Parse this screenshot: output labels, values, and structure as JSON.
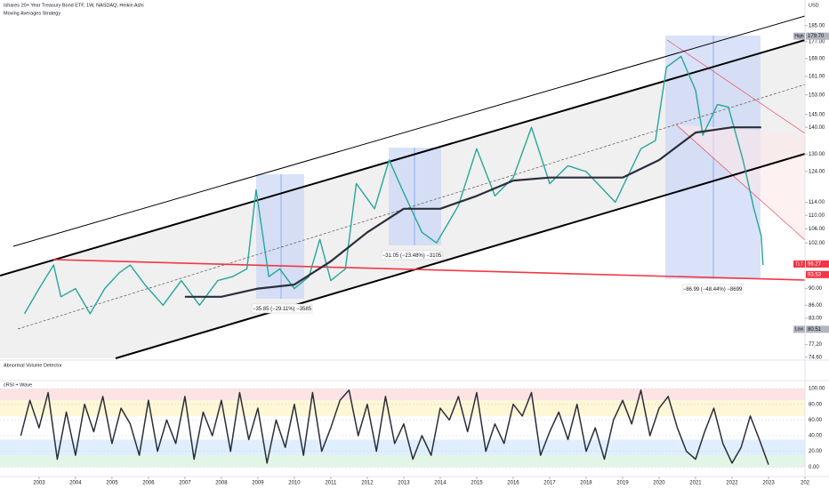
{
  "chart_data": {
    "type": "line",
    "title": "Ishares 20+ Year Treasury Bond ETF, 1W, NASDAQ, Heikin Ashi",
    "subtitle": "Moving Averages Strategy",
    "currency": "USD",
    "log_scale": true,
    "xlim": [
      2001.93,
      2024
    ],
    "xticks": [
      2003,
      2004,
      2005,
      2006,
      2007,
      2008,
      2009,
      2010,
      2011,
      2012,
      2013,
      2014,
      2015,
      2016,
      2017,
      2018,
      2019,
      2020,
      2021,
      2022,
      2023,
      {
        "value": 2024,
        "label": "202"
      }
    ],
    "ylim": [
      74,
      196
    ],
    "yticks": [
      {
        "value": 185,
        "label": "185.00"
      },
      {
        "value": 177,
        "label": "177.00"
      },
      {
        "value": 169,
        "label": "169.00"
      },
      {
        "value": 161,
        "label": "161.00"
      },
      {
        "value": 153,
        "label": "153.00"
      },
      {
        "value": 145,
        "label": "145.00"
      },
      {
        "value": 140,
        "label": "140.00"
      },
      {
        "value": 130,
        "label": "130.00"
      },
      {
        "value": 124,
        "label": "124.00"
      },
      {
        "value": 114,
        "label": "114.00"
      },
      {
        "value": 110,
        "label": "110.00"
      },
      {
        "value": 106,
        "label": "106.00"
      },
      {
        "value": 102,
        "label": "102.00"
      },
      {
        "value": 90,
        "label": "90.00"
      },
      {
        "value": 86,
        "label": "86.00"
      },
      {
        "value": 83,
        "label": "83.00"
      },
      {
        "value": 77.2,
        "label": "77.20"
      },
      {
        "value": 74.6,
        "label": "74.60"
      }
    ],
    "series": [
      {
        "name": "TLT",
        "color": "#26a69a",
        "x": [
          2002.6,
          2003.0,
          2003.4,
          2003.6,
          2004.0,
          2004.4,
          2004.8,
          2005.2,
          2005.5,
          2005.9,
          2006.4,
          2006.9,
          2007.4,
          2007.9,
          2008.3,
          2008.7,
          2008.95,
          2009.3,
          2009.6,
          2010.0,
          2010.4,
          2010.7,
          2011.0,
          2011.4,
          2011.7,
          2012.2,
          2012.6,
          2013.0,
          2013.5,
          2013.9,
          2014.5,
          2015.0,
          2015.5,
          2016.0,
          2016.5,
          2017.0,
          2017.5,
          2018.0,
          2018.8,
          2019.5,
          2019.9,
          2020.2,
          2020.6,
          2021.0,
          2021.2,
          2021.6,
          2021.9,
          2022.3,
          2022.6,
          2022.8,
          2022.85
        ],
        "values": [
          84,
          90,
          96,
          88,
          90,
          84,
          90,
          94,
          96,
          91,
          86,
          92,
          86,
          92,
          93,
          95,
          118,
          93,
          95,
          90,
          93,
          103,
          92,
          95,
          120,
          112,
          128,
          117,
          105,
          102,
          113,
          132,
          116,
          122,
          140,
          120,
          126,
          124,
          114,
          132,
          135,
          165,
          170,
          155,
          137,
          149,
          148,
          128,
          112,
          104,
          96
        ]
      },
      {
        "color": "#2a2e39",
        "x": [
          2007.0,
          2008.0,
          2009.0,
          2010.0,
          2011.0,
          2012.0,
          2013.0,
          2014.0,
          2015.0,
          2016.0,
          2017.0,
          2018.0,
          2019.0,
          2020.0,
          2021.0,
          2022.0,
          2022.8
        ],
        "values": [
          88,
          88,
          90,
          91,
          97,
          105,
          112,
          112,
          116,
          121,
          122,
          122,
          122,
          128,
          138,
          140,
          140
        ]
      }
    ],
    "price_labels": [
      {
        "name": "High",
        "value": 179.7,
        "value_label": "179.70",
        "color": "#b2b5be"
      },
      {
        "name": "TLT",
        "value": 96.27,
        "value_label": "96.27",
        "color": "#f23645"
      },
      {
        "value": 93.53,
        "value_label": "93.53",
        "color": "#f23645"
      },
      {
        "name": "Low",
        "value": 80.51,
        "value_label": "80.51",
        "color": "#b2b5be"
      }
    ],
    "annotations": [
      "−35.85 (−29.11%) −3585",
      "−31.05 (−23.48%) −3105",
      "−86.99 (−48.44%) −8699"
    ],
    "indicators": [
      {
        "title": "Abnormal Volume Detector"
      },
      {
        "title": "cRSI + Wave",
        "ylim": [
          -11,
          108
        ],
        "yticks": [
          {
            "value": 100,
            "label": "100.00"
          },
          {
            "value": 80,
            "label": "80.00"
          },
          {
            "value": 60,
            "label": "60.00"
          },
          {
            "value": 40,
            "label": "40.00"
          },
          {
            "value": 20,
            "label": "20.00"
          },
          {
            "value": 0,
            "label": "0.00"
          }
        ],
        "series": [
          {
            "color": "#2a2e39",
            "x": [
              2002.5,
              2002.75,
              2003.0,
              2003.25,
              2003.5,
              2003.75,
              2004.0,
              2004.25,
              2004.5,
              2004.75,
              2005.0,
              2005.25,
              2005.5,
              2005.75,
              2006.0,
              2006.25,
              2006.5,
              2006.75,
              2007.0,
              2007.25,
              2007.5,
              2007.75,
              2008.0,
              2008.25,
              2008.5,
              2008.75,
              2009.0,
              2009.25,
              2009.5,
              2009.75,
              2010.0,
              2010.25,
              2010.5,
              2010.75,
              2011.0,
              2011.25,
              2011.5,
              2011.75,
              2012.0,
              2012.25,
              2012.5,
              2012.75,
              2013.0,
              2013.25,
              2013.5,
              2013.75,
              2014.0,
              2014.25,
              2014.5,
              2014.75,
              2015.0,
              2015.25,
              2015.5,
              2015.75,
              2016.0,
              2016.25,
              2016.5,
              2016.75,
              2017.0,
              2017.25,
              2017.5,
              2017.75,
              2018.0,
              2018.25,
              2018.5,
              2018.75,
              2019.0,
              2019.25,
              2019.5,
              2019.75,
              2020.0,
              2020.25,
              2020.5,
              2020.75,
              2021.0,
              2021.25,
              2021.5,
              2021.75,
              2022.0,
              2022.25,
              2022.5,
              2022.75,
              2023.0
            ],
            "values": [
              40,
              85,
              50,
              95,
              10,
              70,
              15,
              80,
              45,
              90,
              30,
              75,
              55,
              15,
              85,
              20,
              60,
              30,
              90,
              10,
              70,
              40,
              85,
              20,
              95,
              35,
              75,
              5,
              60,
              25,
              80,
              15,
              95,
              20,
              50,
              85,
              98,
              40,
              80,
              20,
              90,
              30,
              55,
              10,
              40,
              15,
              75,
              60,
              90,
              45,
              95,
              20,
              55,
              30,
              80,
              65,
              95,
              15,
              45,
              70,
              35,
              80,
              20,
              50,
              10,
              60,
              85,
              55,
              98,
              40,
              75,
              90,
              50,
              20,
              10,
              45,
              75,
              30,
              5,
              25,
              65,
              35,
              3
            ]
          }
        ]
      }
    ]
  }
}
